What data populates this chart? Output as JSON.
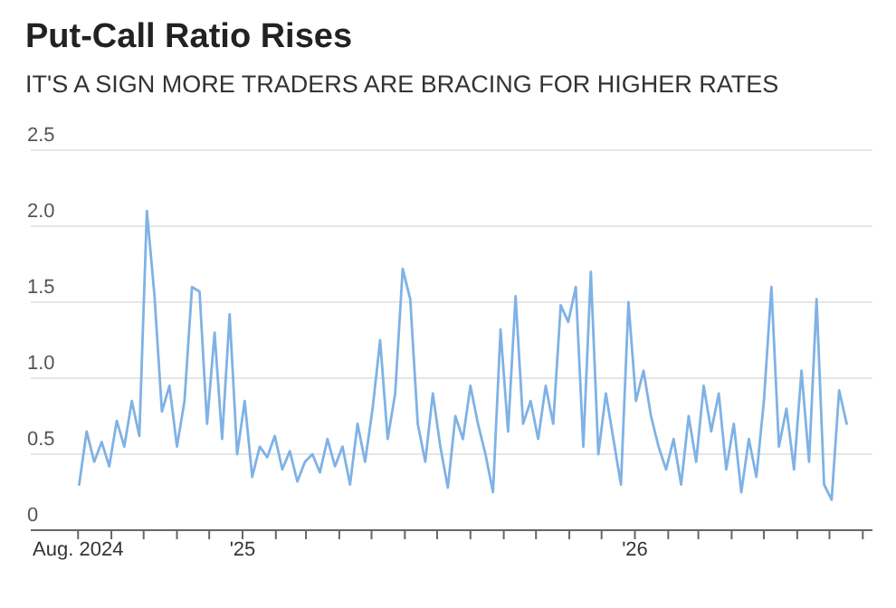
{
  "chart_data": {
    "type": "line",
    "title": "Put-Call Ratio Rises",
    "subtitle": "IT'S A SIGN MORE TRADERS ARE BRACING FOR HIGHER RATES",
    "x": [
      "2024-08-02",
      "2024-08-09",
      "2024-08-16",
      "2024-08-23",
      "2024-08-30",
      "2024-09-06",
      "2024-09-13",
      "2024-09-20",
      "2024-09-27",
      "2024-10-04",
      "2024-10-11",
      "2024-10-18",
      "2024-10-25",
      "2024-11-01",
      "2024-11-08",
      "2024-11-15",
      "2024-11-22",
      "2024-11-29",
      "2024-12-06",
      "2024-12-13",
      "2024-12-20",
      "2024-12-27",
      "2025-01-03",
      "2025-01-10",
      "2025-01-17",
      "2025-01-24",
      "2025-01-31",
      "2025-02-07",
      "2025-02-14",
      "2025-02-21",
      "2025-02-28",
      "2025-03-07",
      "2025-03-14",
      "2025-03-21",
      "2025-03-28",
      "2025-04-04",
      "2025-04-11",
      "2025-04-18",
      "2025-04-25",
      "2025-05-02",
      "2025-05-09",
      "2025-05-16",
      "2025-05-23",
      "2025-05-30",
      "2025-06-06",
      "2025-06-13",
      "2025-06-20",
      "2025-06-27",
      "2025-07-04",
      "2025-07-11",
      "2025-07-18",
      "2025-07-25",
      "2025-08-01",
      "2025-08-08",
      "2025-08-15",
      "2025-08-22",
      "2025-08-29",
      "2025-09-05",
      "2025-09-12",
      "2025-09-19",
      "2025-09-26",
      "2025-10-03",
      "2025-10-10",
      "2025-10-17",
      "2025-10-24",
      "2025-10-31",
      "2025-11-07",
      "2025-11-14",
      "2025-11-21",
      "2025-11-28",
      "2025-12-05",
      "2025-12-12",
      "2025-12-19",
      "2025-12-26",
      "2026-01-02",
      "2026-01-09",
      "2026-01-16",
      "2026-01-23",
      "2026-01-30",
      "2026-02-06",
      "2026-02-13",
      "2026-02-20",
      "2026-02-27",
      "2026-03-06",
      "2026-03-13",
      "2026-03-20",
      "2026-03-27",
      "2026-04-03",
      "2026-04-10",
      "2026-04-17",
      "2026-04-24",
      "2026-05-01",
      "2026-05-08",
      "2026-05-15",
      "2026-05-22",
      "2026-05-29",
      "2026-06-05",
      "2026-06-12",
      "2026-06-19",
      "2026-06-26",
      "2026-07-03",
      "2026-07-10",
      "2026-07-17"
    ],
    "series": [
      {
        "color": "#7fb2e5",
        "values": [
          0.3,
          0.65,
          0.45,
          0.58,
          0.42,
          0.72,
          0.55,
          0.85,
          0.62,
          2.1,
          1.55,
          0.78,
          0.95,
          0.55,
          0.85,
          1.6,
          1.57,
          0.7,
          1.3,
          0.6,
          1.42,
          0.5,
          0.85,
          0.35,
          0.55,
          0.48,
          0.62,
          0.4,
          0.52,
          0.32,
          0.45,
          0.5,
          0.38,
          0.6,
          0.42,
          0.55,
          0.3,
          0.7,
          0.45,
          0.8,
          1.25,
          0.6,
          0.9,
          1.72,
          1.52,
          0.7,
          0.45,
          0.9,
          0.55,
          0.28,
          0.75,
          0.6,
          0.95,
          0.7,
          0.5,
          0.25,
          1.32,
          0.65,
          1.54,
          0.7,
          0.85,
          0.6,
          0.95,
          0.7,
          1.48,
          1.37,
          1.6,
          0.55,
          1.7,
          0.5,
          0.9,
          0.6,
          0.3,
          1.5,
          0.85,
          1.05,
          0.75,
          0.55,
          0.4,
          0.6,
          0.3,
          0.75,
          0.45,
          0.95,
          0.65,
          0.9,
          0.4,
          0.7,
          0.25,
          0.6,
          0.35,
          0.85,
          1.6,
          0.55,
          0.8,
          0.4,
          1.05,
          0.45,
          1.52,
          0.3,
          0.2,
          0.92,
          0.7
        ]
      }
    ],
    "xlim": [
      "2024-06-18",
      "2026-08-10"
    ],
    "xticks": [
      {
        "value": "2024-08-01",
        "label": "Aug. 2024"
      },
      {
        "value": "2024-09-01",
        "label": null
      },
      {
        "value": "2024-10-01",
        "label": null
      },
      {
        "value": "2024-11-01",
        "label": null
      },
      {
        "value": "2024-12-01",
        "label": null
      },
      {
        "value": "2025-01-01",
        "label": "'25"
      },
      {
        "value": "2025-02-01",
        "label": null
      },
      {
        "value": "2025-03-01",
        "label": null
      },
      {
        "value": "2025-04-01",
        "label": null
      },
      {
        "value": "2025-05-01",
        "label": null
      },
      {
        "value": "2025-06-01",
        "label": null
      },
      {
        "value": "2025-07-01",
        "label": null
      },
      {
        "value": "2025-08-01",
        "label": null
      },
      {
        "value": "2025-09-01",
        "label": null
      },
      {
        "value": "2025-10-01",
        "label": null
      },
      {
        "value": "2025-11-01",
        "label": null
      },
      {
        "value": "2025-12-01",
        "label": null
      },
      {
        "value": "2026-01-01",
        "label": "'26"
      },
      {
        "value": "2026-02-01",
        "label": null
      },
      {
        "value": "2026-03-01",
        "label": null
      },
      {
        "value": "2026-04-01",
        "label": null
      },
      {
        "value": "2026-05-01",
        "label": null
      },
      {
        "value": "2026-06-01",
        "label": null
      },
      {
        "value": "2026-07-01",
        "label": null
      },
      {
        "value": "2026-08-01",
        "label": null
      }
    ],
    "ylim": [
      0,
      2.5
    ],
    "yticks": [
      0,
      0.5,
      {
        "value": 1,
        "label": "1.0"
      },
      1.5,
      {
        "value": 2,
        "label": "2.0"
      },
      2.5
    ],
    "grid": "y",
    "marker": "none",
    "line_style": "solid"
  }
}
